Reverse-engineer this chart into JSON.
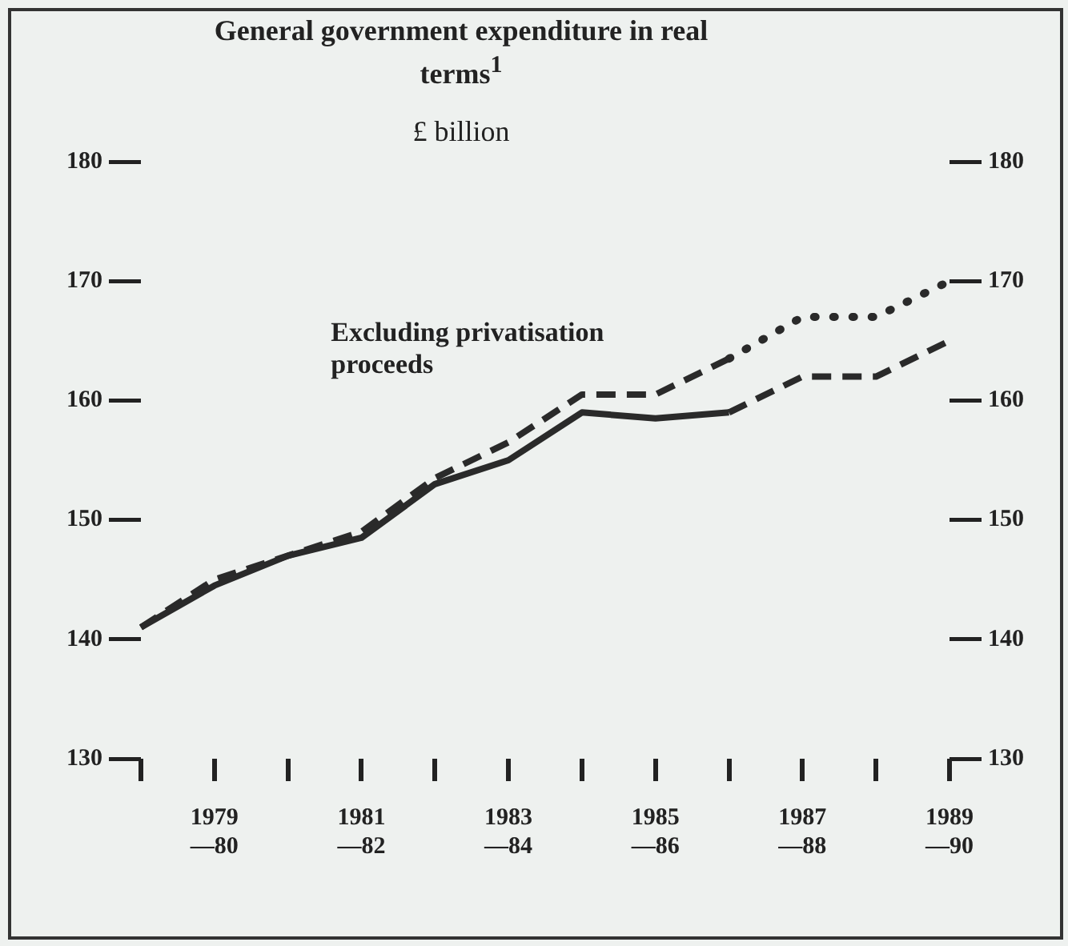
{
  "chart_data": {
    "type": "line",
    "title": "General government expenditure in real terms$^{1}$",
    "subtitle": "£ billion",
    "categories": [
      null,
      "1979 —80",
      null,
      "1981 —82",
      null,
      "1983 —84",
      null,
      "1985 —86",
      null,
      "1987 —88",
      null,
      "1989 —90"
    ],
    "series": [
      {
        "color": "#2a2a2a",
        "line_style": "solid",
        "values": [
          141,
          144.5,
          147,
          148.5,
          153,
          155,
          159,
          158.5,
          159,
          null,
          null,
          null
        ]
      },
      {
        "color": "#2a2a2a",
        "line_style": "dashed",
        "values": [
          null,
          null,
          null,
          null,
          null,
          null,
          null,
          null,
          159,
          162,
          162,
          165
        ]
      },
      {
        "name": "Excluding privatisation proceeds",
        "color": "#2a2a2a",
        "line_style": "dashed",
        "values": [
          141,
          145,
          147,
          149,
          153.5,
          156.5,
          160.5,
          160.5,
          163.5,
          null,
          null,
          null
        ]
      },
      {
        "color": "#2a2a2a",
        "line_style": "dotted",
        "values": [
          null,
          null,
          null,
          null,
          null,
          null,
          null,
          null,
          163.5,
          167,
          167,
          170
        ]
      }
    ],
    "ylim": [
      130,
      180
    ],
    "yticks": [
      130,
      140,
      150,
      160,
      170,
      180
    ],
    "y2lim": [
      130,
      180
    ],
    "y2ticks": [
      130,
      140,
      150,
      160,
      170,
      180
    ],
    "grid": false,
    "legend": false,
    "marker": "none"
  }
}
